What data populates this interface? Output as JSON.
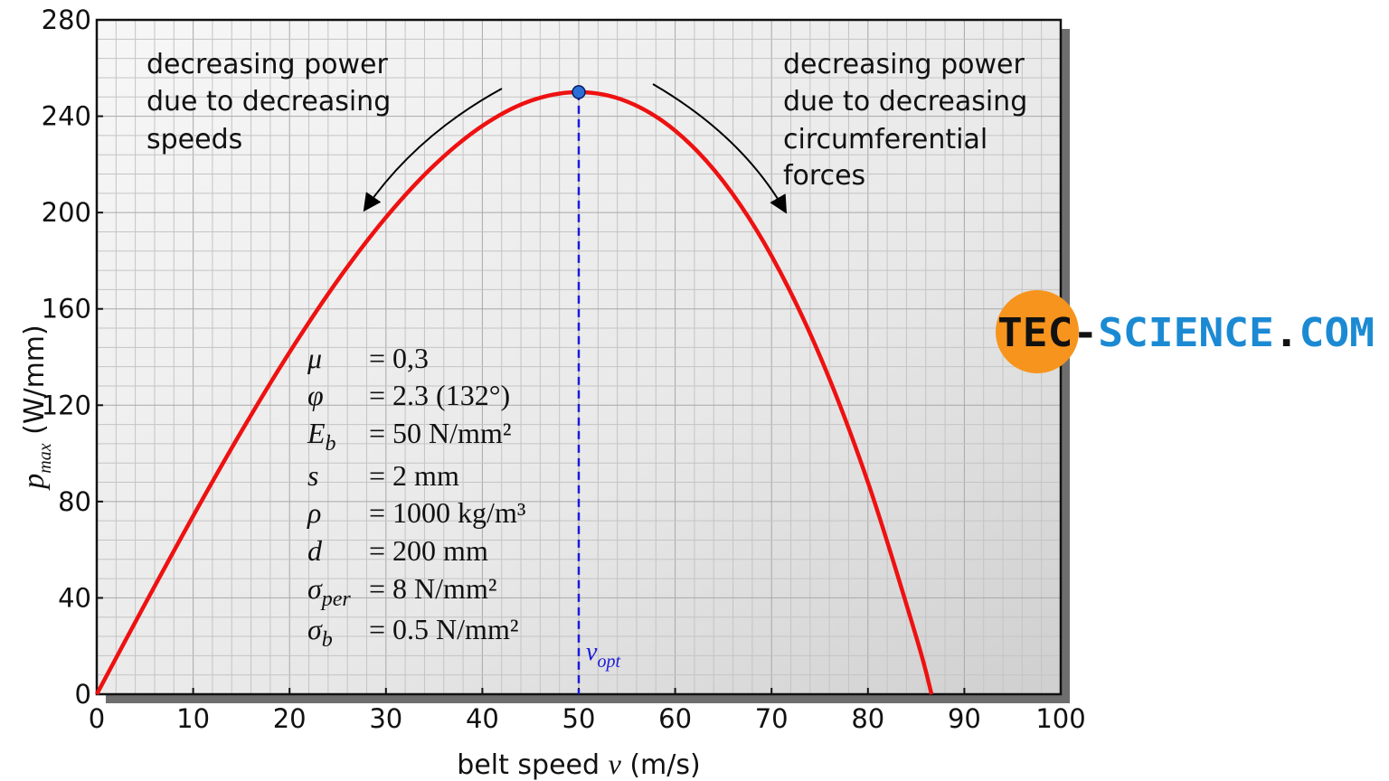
{
  "chart_data": {
    "type": "line",
    "xlabel": "belt speed v (m/s)",
    "xlabel_parts": {
      "pre": "belt speed ",
      "var": "v",
      "post": " (m/s)"
    },
    "ylabel_parts": {
      "var": "p",
      "sub": "max",
      "post": " (W/mm)"
    },
    "xlim": [
      0,
      100
    ],
    "ylim": [
      0,
      280
    ],
    "xticks": [
      0,
      10,
      20,
      30,
      40,
      50,
      60,
      70,
      80,
      90,
      100
    ],
    "yticks": [
      0,
      40,
      80,
      120,
      160,
      200,
      240,
      280
    ],
    "grid": true,
    "series": [
      {
        "color": "#ee1111",
        "x": [
          0,
          5,
          10,
          15,
          20,
          25,
          30,
          35,
          40,
          45,
          50,
          55,
          60,
          65,
          70,
          75,
          80,
          85,
          86.6
        ],
        "y": [
          0,
          37.4,
          74,
          109.1,
          142,
          171.9,
          198,
          219.6,
          236,
          246.4,
          250,
          246.1,
          234,
          212.9,
          182,
          140.6,
          88,
          23.9,
          0
        ]
      }
    ],
    "optimum": {
      "x": 50,
      "y": 250,
      "label_var": "v",
      "label_sub": "opt",
      "color": "#1a1adb"
    },
    "annotations": [
      {
        "lines": [
          "decreasing power",
          "due to decreasing",
          "speeds"
        ]
      },
      {
        "lines": [
          "decreasing power",
          "due to decreasing",
          "circumferential",
          "forces"
        ]
      }
    ],
    "parameters": [
      {
        "sym": "μ",
        "sub": "",
        "value": "= 0,3"
      },
      {
        "sym": "φ",
        "sub": "",
        "value": "= 2.3 (132°)"
      },
      {
        "sym": "E",
        "sub": "b",
        "value": "= 50 N/mm²"
      },
      {
        "sym": "s",
        "sub": "",
        "value": "= 2 mm"
      },
      {
        "sym": "ρ",
        "sub": "",
        "value": "= 1000 kg/m³"
      },
      {
        "sym": "d",
        "sub": "",
        "value": "= 200 mm"
      },
      {
        "sym": "σ",
        "sub": "per",
        "value": "= 8 N/mm²"
      },
      {
        "sym": "σ",
        "sub": "b",
        "value": "= 0.5 N/mm²"
      }
    ]
  },
  "logo": {
    "part1": "TEC",
    "dash": "-",
    "part2": "SCIENCE",
    "dot": ".",
    "part3": "COM",
    "orange": "#f7941d",
    "blue": "#1b8ad3"
  }
}
